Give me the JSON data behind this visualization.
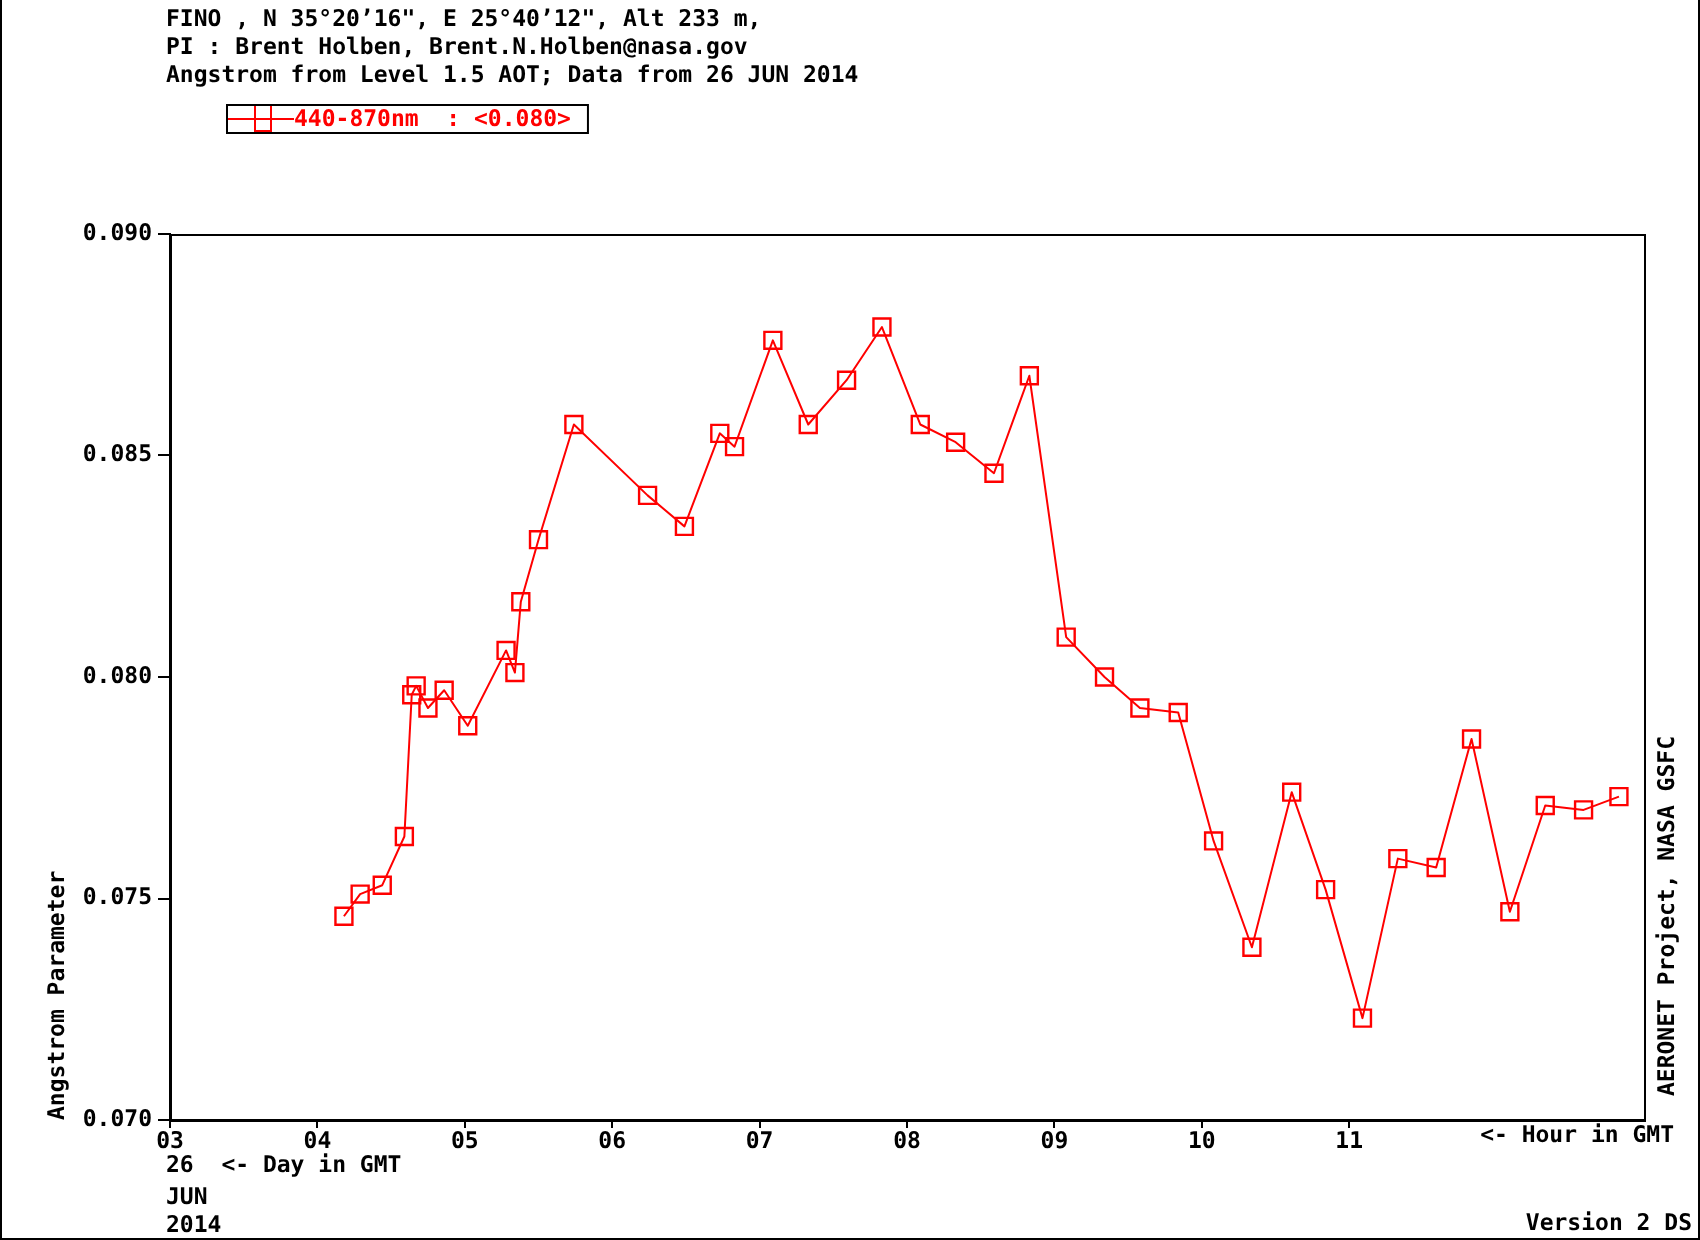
{
  "chart_data": {
    "type": "line",
    "title": "FINO , N 35°20’16\", E 25°40’12\", Alt 233 m,",
    "subtitle": "PI : Brent Holben, Brent.N.Holben@nasa.gov\nAngstrom from Level 1.5 AOT; Data from 26 JUN 2014",
    "xlabel": "<- Hour in GMT",
    "ylabel": "Angstrom Parameter",
    "annotations": [
      "26  <- Day in GMT",
      "JUN",
      "2014",
      "AERONET Project, NASA GSFC",
      "Version 2 DS"
    ],
    "x": [
      4.18,
      4.29,
      4.44,
      4.59,
      4.64,
      4.67,
      4.75,
      4.86,
      5.02,
      5.28,
      5.34,
      5.38,
      5.5,
      5.74,
      6.24,
      6.49,
      6.73,
      6.83,
      7.09,
      7.33,
      7.59,
      7.83,
      8.09,
      8.33,
      8.59,
      8.83,
      9.08,
      9.34,
      9.58,
      9.84,
      10.08,
      10.34,
      10.61,
      10.84,
      11.09,
      11.33,
      11.59,
      11.83,
      12.09,
      12.33,
      12.59,
      12.83
    ],
    "series": [
      {
        "name": "440-870nm  : <0.080>",
        "color": "#ff0000",
        "values": [
          0.0746,
          0.0751,
          0.0753,
          0.0764,
          0.0796,
          0.0798,
          0.0793,
          0.0797,
          0.0789,
          0.0806,
          0.0801,
          0.0817,
          0.0831,
          0.0857,
          0.0841,
          0.0834,
          0.0855,
          0.0852,
          0.0876,
          0.0857,
          0.0867,
          0.0879,
          0.0857,
          0.0853,
          0.0846,
          0.0868,
          0.0809,
          0.08,
          0.0793,
          0.0792,
          0.0763,
          0.0739,
          0.0774,
          0.0752,
          0.0723,
          0.0759,
          0.0757,
          0.0786,
          0.0747,
          0.0771,
          0.077,
          0.0773
        ]
      }
    ],
    "xlim": [
      3,
      13
    ],
    "xticks": [
      {
        "value": 3,
        "label": "03"
      },
      {
        "value": 4,
        "label": "04"
      },
      {
        "value": 5,
        "label": "05"
      },
      {
        "value": 6,
        "label": "06"
      },
      {
        "value": 7,
        "label": "07"
      },
      {
        "value": 8,
        "label": "08"
      },
      {
        "value": 9,
        "label": "09"
      },
      10,
      11
    ],
    "ylim": [
      0.07,
      0.09
    ],
    "yticks": [
      {
        "value": 0.07,
        "label": "0.070"
      },
      {
        "value": 0.075,
        "label": "0.075"
      },
      {
        "value": 0.08,
        "label": "0.080"
      },
      {
        "value": 0.085,
        "label": "0.085"
      },
      {
        "value": 0.09,
        "label": "0.090"
      }
    ],
    "grid": false,
    "legend": "top left",
    "marker": "square",
    "line_style": "solid"
  }
}
